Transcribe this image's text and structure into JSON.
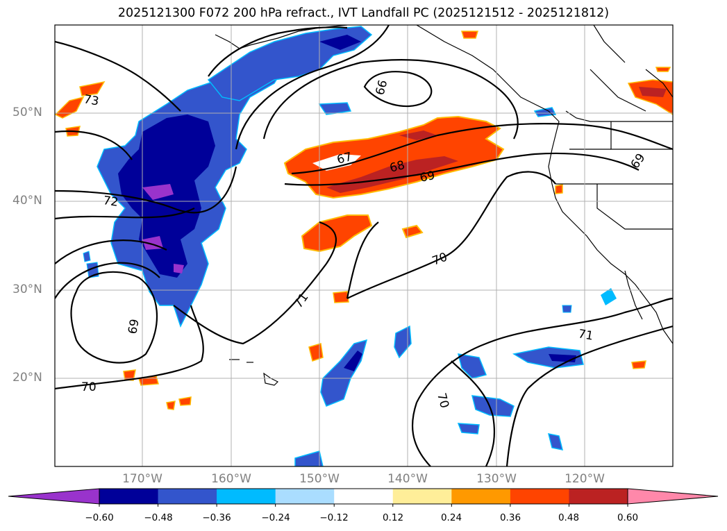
{
  "title": "2025121300 F072 200 hPa refract., IVT Landfall PC (2025121512 - 2025121812)",
  "map": {
    "lat_labels": [
      "50°N",
      "40°N",
      "30°N",
      "20°N"
    ],
    "lon_labels": [
      "170°W",
      "160°W",
      "150°W",
      "140°W",
      "130°W",
      "120°W"
    ],
    "contour_labels": [
      "66",
      "67",
      "68",
      "69",
      "69",
      "69",
      "70",
      "70",
      "70",
      "71",
      "71",
      "72",
      "73"
    ],
    "colorbar_ticks": [
      "−0.60",
      "−0.48",
      "−0.36",
      "−0.24",
      "−0.12",
      "0.12",
      "0.24",
      "0.36",
      "0.48",
      "0.60"
    ],
    "colorbar_colors": [
      "#9933cc",
      "#000099",
      "#3355cc",
      "#00bbff",
      "#aaddff",
      "#ffffff",
      "#ffee99",
      "#ff9900",
      "#ff4400",
      "#bb2222",
      "#ff88aa"
    ]
  }
}
